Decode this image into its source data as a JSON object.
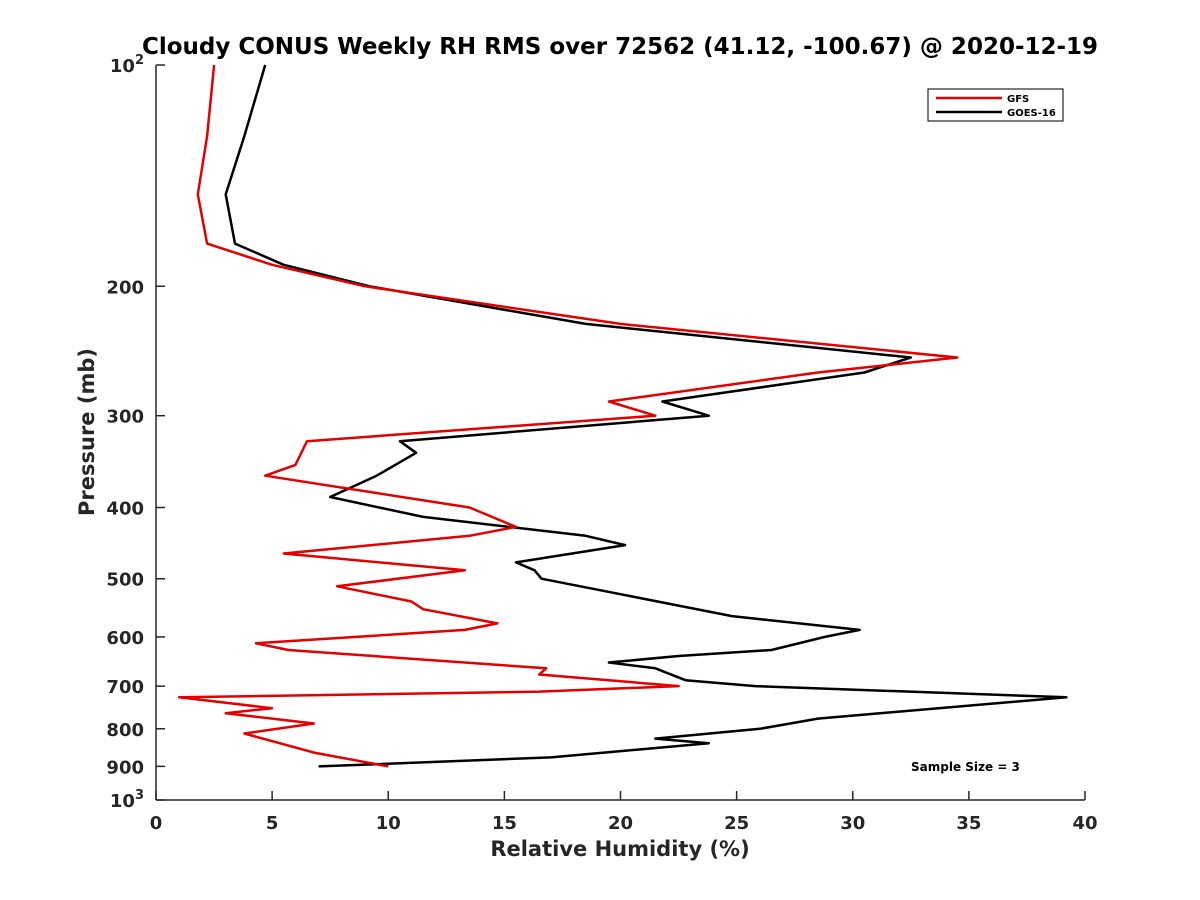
{
  "chart_data": {
    "type": "line",
    "title": "Cloudy CONUS Weekly RH RMS over 72562 (41.12, -100.67) @ 2020-12-19",
    "xlabel": "Relative Humidity (%)",
    "ylabel": "Pressure (mb)",
    "xlim": [
      0,
      40
    ],
    "ylim": [
      100,
      1000
    ],
    "y_scale": "log",
    "y_reversed": true,
    "x_ticks": [
      "0",
      "5",
      "10",
      "15",
      "20",
      "25",
      "30",
      "35",
      "40"
    ],
    "y_ticks": [
      {
        "value": 100,
        "base": "10",
        "exp": "2"
      },
      {
        "value": 200,
        "label": "200"
      },
      {
        "value": 300,
        "label": "300"
      },
      {
        "value": 400,
        "label": "400"
      },
      {
        "value": 500,
        "label": "500"
      },
      {
        "value": 600,
        "label": "600"
      },
      {
        "value": 700,
        "label": "700"
      },
      {
        "value": 800,
        "label": "800"
      },
      {
        "value": 900,
        "label": "900"
      },
      {
        "value": 1000,
        "base": "10",
        "exp": "3"
      }
    ],
    "grid": false,
    "legend_position": "top-right",
    "annotation": "Sample Size = 3",
    "series": [
      {
        "name": "GFS",
        "color": "#e50000",
        "points": [
          [
            2.5,
            100
          ],
          [
            2.2,
            125
          ],
          [
            1.8,
            150
          ],
          [
            2.2,
            175
          ],
          [
            5.0,
            187
          ],
          [
            9.0,
            200
          ],
          [
            20.0,
            225
          ],
          [
            34.5,
            250
          ],
          [
            28.5,
            262
          ],
          [
            19.5,
            287
          ],
          [
            21.5,
            300
          ],
          [
            6.5,
            325
          ],
          [
            6.0,
            350
          ],
          [
            4.7,
            362
          ],
          [
            13.5,
            400
          ],
          [
            15.5,
            425
          ],
          [
            13.5,
            437
          ],
          [
            5.5,
            462
          ],
          [
            13.3,
            487
          ],
          [
            7.8,
            512
          ],
          [
            11.0,
            537
          ],
          [
            11.5,
            550
          ],
          [
            14.7,
            575
          ],
          [
            13.3,
            587
          ],
          [
            4.3,
            612
          ],
          [
            5.7,
            625
          ],
          [
            16.8,
            662
          ],
          [
            16.5,
            675
          ],
          [
            22.5,
            700
          ],
          [
            16.5,
            712
          ],
          [
            1.0,
            725
          ],
          [
            5.0,
            750
          ],
          [
            3.0,
            762
          ],
          [
            6.8,
            787
          ],
          [
            3.8,
            812
          ],
          [
            6.8,
            862
          ],
          [
            10.0,
            900
          ]
        ]
      },
      {
        "name": "GOES-16",
        "color": "#000000",
        "points": [
          [
            4.7,
            100
          ],
          [
            3.8,
            125
          ],
          [
            3.0,
            150
          ],
          [
            3.4,
            175
          ],
          [
            5.5,
            187
          ],
          [
            9.2,
            200
          ],
          [
            18.5,
            225
          ],
          [
            32.5,
            250
          ],
          [
            30.5,
            262
          ],
          [
            21.8,
            287
          ],
          [
            23.8,
            300
          ],
          [
            10.5,
            325
          ],
          [
            11.2,
            337
          ],
          [
            9.5,
            362
          ],
          [
            7.5,
            387
          ],
          [
            11.5,
            412
          ],
          [
            18.5,
            437
          ],
          [
            20.2,
            450
          ],
          [
            15.5,
            475
          ],
          [
            16.3,
            487
          ],
          [
            16.6,
            500
          ],
          [
            24.8,
            562
          ],
          [
            30.3,
            587
          ],
          [
            28.8,
            600
          ],
          [
            26.5,
            625
          ],
          [
            22.5,
            637
          ],
          [
            19.5,
            650
          ],
          [
            21.5,
            662
          ],
          [
            22.8,
            687
          ],
          [
            25.8,
            700
          ],
          [
            39.2,
            725
          ],
          [
            28.5,
            775
          ],
          [
            26.0,
            800
          ],
          [
            21.5,
            825
          ],
          [
            23.8,
            837
          ],
          [
            17.0,
            875
          ],
          [
            7.0,
            900
          ]
        ]
      }
    ]
  }
}
